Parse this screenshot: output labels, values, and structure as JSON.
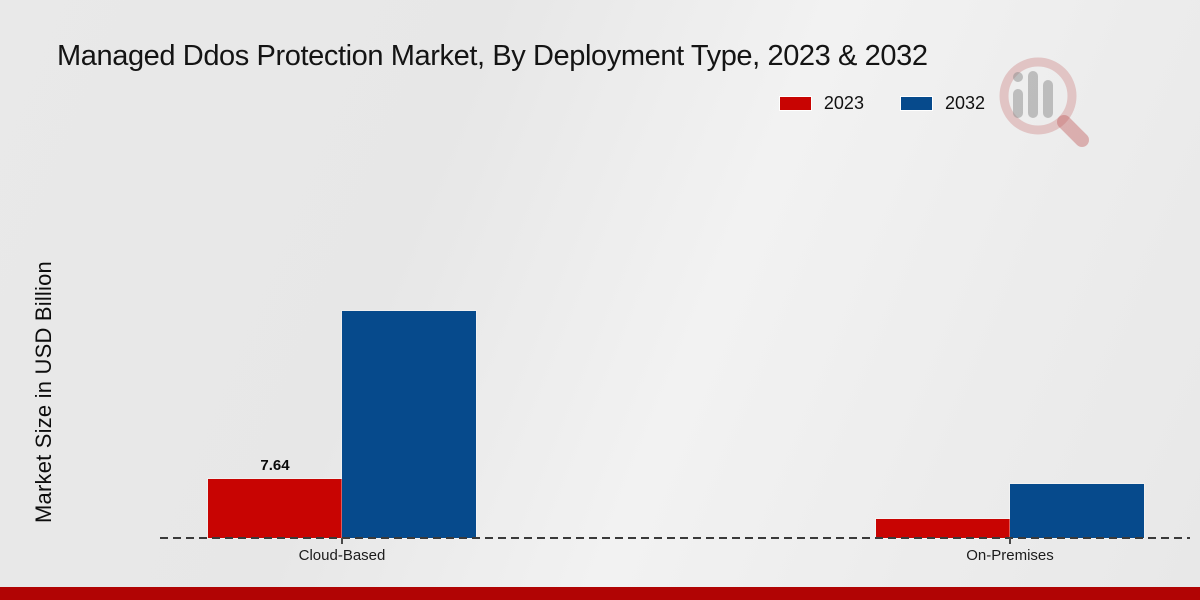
{
  "header": {
    "title": "Managed Ddos Protection Market, By Deployment Type, 2023 & 2032"
  },
  "axes": {
    "y_label": "Market Size in USD Billion"
  },
  "legend": {
    "items": [
      {
        "label": "2023",
        "color": "#c80402"
      },
      {
        "label": "2032",
        "color": "#064a8c"
      }
    ]
  },
  "watermark": {
    "icon": "magnifier-bar-chart-logo"
  },
  "footer": {
    "strip_color": "#b10404"
  },
  "chart_data": {
    "type": "bar",
    "title": "Managed Ddos Protection Market, By Deployment Type, 2023 & 2032",
    "ylabel": "Market Size in USD Billion",
    "categories": [
      "Cloud-Based",
      "On-Premises"
    ],
    "series": [
      {
        "name": "2023",
        "color": "#c80402",
        "values": [
          7.64,
          2.46
        ],
        "data_labels": [
          "7.64",
          ""
        ]
      },
      {
        "name": "2032",
        "color": "#064a8c",
        "values": [
          29.4,
          7.0
        ],
        "data_labels": [
          "",
          ""
        ]
      }
    ],
    "ylim": [
      0,
      33
    ],
    "grid": false,
    "baseline_style": "dashed",
    "legend_position": "top-right"
  }
}
